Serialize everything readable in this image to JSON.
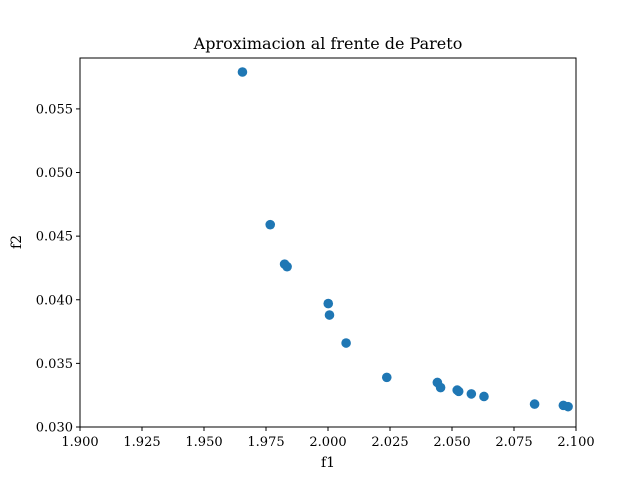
{
  "chart_data": {
    "type": "scatter",
    "title": "Aproximacion al frente de Pareto",
    "xlabel": "f1",
    "ylabel": "f2",
    "xlim": [
      1.9,
      2.1
    ],
    "ylim": [
      0.03,
      0.059
    ],
    "xticks": [
      1.9,
      1.925,
      1.95,
      1.975,
      2.0,
      2.025,
      2.05,
      2.075,
      2.1
    ],
    "xtick_labels": [
      "1.900",
      "1.925",
      "1.950",
      "1.975",
      "2.000",
      "2.025",
      "2.050",
      "2.075",
      "2.100"
    ],
    "yticks": [
      0.03,
      0.035,
      0.04,
      0.045,
      0.05,
      0.055
    ],
    "ytick_labels": [
      "0.030",
      "0.035",
      "0.040",
      "0.045",
      "0.050",
      "0.055"
    ],
    "grid": false,
    "marker_color": "#1f77b4",
    "series": [
      {
        "points": [
          {
            "x": 1.9655,
            "y": 0.0579
          },
          {
            "x": 1.9767,
            "y": 0.0459
          },
          {
            "x": 1.9825,
            "y": 0.0428
          },
          {
            "x": 1.9835,
            "y": 0.0426
          },
          {
            "x": 2.0001,
            "y": 0.0397
          },
          {
            "x": 2.0006,
            "y": 0.0388
          },
          {
            "x": 2.0073,
            "y": 0.0366
          },
          {
            "x": 2.0237,
            "y": 0.0339
          },
          {
            "x": 2.0441,
            "y": 0.0335
          },
          {
            "x": 2.0454,
            "y": 0.0331
          },
          {
            "x": 2.0521,
            "y": 0.0329
          },
          {
            "x": 2.0527,
            "y": 0.0328
          },
          {
            "x": 2.0578,
            "y": 0.0326
          },
          {
            "x": 2.0629,
            "y": 0.0324
          },
          {
            "x": 2.0833,
            "y": 0.0318
          },
          {
            "x": 2.0949,
            "y": 0.0317
          },
          {
            "x": 2.0968,
            "y": 0.0316
          }
        ]
      }
    ]
  }
}
